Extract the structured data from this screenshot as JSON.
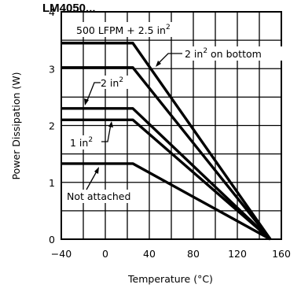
{
  "chart_data": {
    "type": "line",
    "title": "LM4050...",
    "xlabel": "Temperature (°C)",
    "ylabel": "Power Dissipation (W)",
    "xlim": [
      -40,
      160
    ],
    "ylim": [
      0,
      4
    ],
    "xticks": [
      -40,
      0,
      40,
      80,
      120,
      160
    ],
    "yticks": [
      0,
      1,
      2,
      3,
      4
    ],
    "x_tick_labels": [
      "−40",
      "0",
      "40",
      "80",
      "120",
      "160"
    ],
    "y_tick_labels": [
      "0",
      "1",
      "2",
      "3",
      "4"
    ],
    "grid": true,
    "series": [
      {
        "name": "500 LFPM + 2.5 in²",
        "x": [
          -40,
          25,
          150
        ],
        "y": [
          3.45,
          3.45,
          0
        ]
      },
      {
        "name": "2 in² on bottom",
        "x": [
          -40,
          25,
          150
        ],
        "y": [
          3.02,
          3.02,
          0
        ]
      },
      {
        "name": "2 in²",
        "x": [
          -40,
          25,
          150
        ],
        "y": [
          2.3,
          2.3,
          0
        ]
      },
      {
        "name": "1 in²",
        "x": [
          -40,
          25,
          150
        ],
        "y": [
          2.1,
          2.1,
          0
        ]
      },
      {
        "name": "Not attached",
        "x": [
          -40,
          25,
          150
        ],
        "y": [
          1.33,
          1.33,
          0
        ]
      }
    ],
    "annotations": [
      {
        "id": "lfpm",
        "base": "500 LFPM + 2.5 in",
        "sup": "2",
        "tail": ""
      },
      {
        "id": "bottom",
        "base": "2 in",
        "sup": "2",
        "tail": " on bottom"
      },
      {
        "id": "two",
        "base": "2 in",
        "sup": "2",
        "tail": ""
      },
      {
        "id": "one",
        "base": "1 in",
        "sup": "2",
        "tail": ""
      },
      {
        "id": "notatt",
        "base": "Not attached",
        "sup": "",
        "tail": ""
      }
    ]
  },
  "colors": {
    "line": "#000000",
    "grid": "#000000",
    "background": "#ffffff"
  }
}
